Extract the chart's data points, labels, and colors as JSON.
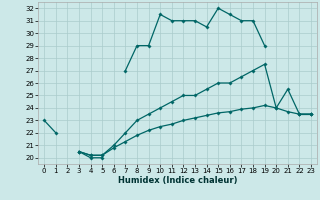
{
  "title": "",
  "xlabel": "Humidex (Indice chaleur)",
  "ylabel": "",
  "bg_color": "#cce8e8",
  "line_color": "#006666",
  "grid_color": "#aacccc",
  "ylim": [
    19.5,
    32.5
  ],
  "xlim": [
    -0.5,
    23.5
  ],
  "yticks": [
    20,
    21,
    22,
    23,
    24,
    25,
    26,
    27,
    28,
    29,
    30,
    31,
    32
  ],
  "xticks": [
    0,
    1,
    2,
    3,
    4,
    5,
    6,
    7,
    8,
    9,
    10,
    11,
    12,
    13,
    14,
    15,
    16,
    17,
    18,
    19,
    20,
    21,
    22,
    23
  ],
  "curve1_x": [
    0,
    1,
    3,
    4,
    5,
    7,
    8,
    9,
    10,
    11,
    12,
    13,
    14,
    15,
    16,
    17,
    18,
    19,
    22,
    23
  ],
  "curve1_y": [
    23,
    22,
    20.5,
    20,
    20,
    27,
    29,
    29,
    31.5,
    31,
    31,
    31,
    30.5,
    32,
    31.5,
    31,
    31,
    29,
    23.5,
    23.5
  ],
  "curve1_break1_after": 4,
  "curve1_break2_after": 5,
  "curve2_x": [
    3,
    4,
    5,
    6,
    7,
    8,
    9,
    10,
    11,
    12,
    13,
    14,
    15,
    16,
    17,
    18,
    19,
    20,
    21,
    22,
    23
  ],
  "curve2_y": [
    20.5,
    20.2,
    20.2,
    21,
    22,
    23,
    23.5,
    24,
    24.5,
    25,
    25,
    25.5,
    26,
    26,
    26.5,
    27,
    27.5,
    24,
    25.5,
    23.5,
    23.5
  ],
  "curve3_x": [
    3,
    4,
    5,
    6,
    7,
    8,
    9,
    10,
    11,
    12,
    13,
    14,
    15,
    16,
    17,
    18,
    19,
    20,
    21,
    22,
    23
  ],
  "curve3_y": [
    20.5,
    20.2,
    20.2,
    20.8,
    21.3,
    21.8,
    22.2,
    22.5,
    22.7,
    23,
    23.2,
    23.4,
    23.6,
    23.7,
    23.9,
    24,
    24.2,
    24,
    23.7,
    23.5,
    23.5
  ]
}
